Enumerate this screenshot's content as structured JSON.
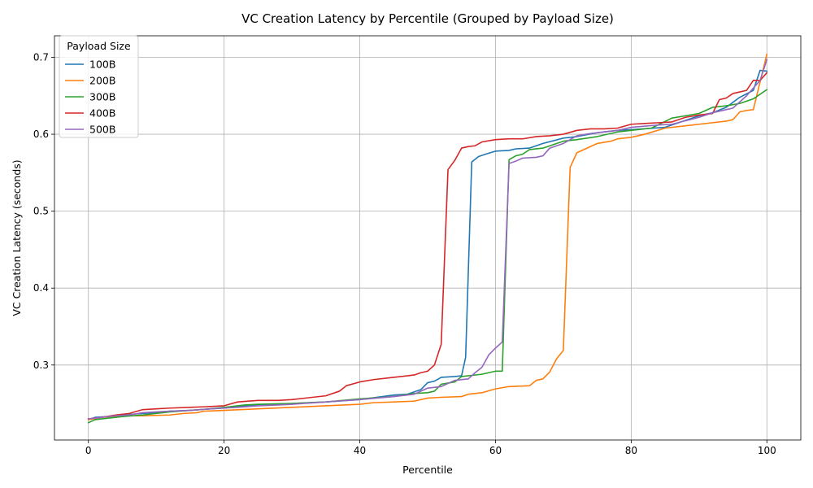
{
  "chart_data": {
    "type": "line",
    "title": "VC Creation Latency by Percentile (Grouped by Payload Size)",
    "xlabel": "Percentile",
    "ylabel": "VC Creation Latency (seconds)",
    "xlim": [
      -5,
      105
    ],
    "ylim": [
      0.2025,
      0.728
    ],
    "xticks": [
      0,
      20,
      40,
      60,
      80,
      100
    ],
    "yticks": [
      0.3,
      0.4,
      0.5,
      0.6,
      0.7
    ],
    "xtick_labels": [
      "0",
      "20",
      "40",
      "60",
      "80",
      "100"
    ],
    "ytick_labels": [
      "0.3",
      "0.4",
      "0.5",
      "0.6",
      "0.7"
    ],
    "grid": true,
    "legend": {
      "title": "Payload Size",
      "placement": "top-left"
    },
    "series": [
      {
        "name": "100B",
        "color": "#1f77b4",
        "points": [
          [
            0,
            0.229
          ],
          [
            1,
            0.232
          ],
          [
            3,
            0.233
          ],
          [
            5,
            0.235
          ],
          [
            8,
            0.237
          ],
          [
            10,
            0.238
          ],
          [
            12,
            0.24
          ],
          [
            15,
            0.241
          ],
          [
            18,
            0.243
          ],
          [
            20,
            0.244
          ],
          [
            22,
            0.246
          ],
          [
            25,
            0.248
          ],
          [
            30,
            0.25
          ],
          [
            35,
            0.252
          ],
          [
            40,
            0.255
          ],
          [
            45,
            0.261
          ],
          [
            47,
            0.262
          ],
          [
            49,
            0.268
          ],
          [
            50,
            0.277
          ],
          [
            51,
            0.279
          ],
          [
            52,
            0.284
          ],
          [
            54,
            0.285
          ],
          [
            55,
            0.286
          ],
          [
            55.6,
            0.31
          ],
          [
            56.5,
            0.564
          ],
          [
            57.5,
            0.571
          ],
          [
            58.5,
            0.574
          ],
          [
            60,
            0.578
          ],
          [
            62,
            0.579
          ],
          [
            63,
            0.581
          ],
          [
            65,
            0.582
          ],
          [
            67,
            0.588
          ],
          [
            70,
            0.595
          ],
          [
            72,
            0.597
          ],
          [
            75,
            0.602
          ],
          [
            78,
            0.605
          ],
          [
            80,
            0.606
          ],
          [
            85,
            0.609
          ],
          [
            88,
            0.618
          ],
          [
            90,
            0.624
          ],
          [
            92,
            0.628
          ],
          [
            94,
            0.635
          ],
          [
            96,
            0.648
          ],
          [
            98,
            0.657
          ],
          [
            99,
            0.683
          ],
          [
            100,
            0.682
          ]
        ]
      },
      {
        "name": "200B",
        "color": "#ff7f0e",
        "points": [
          [
            0,
            0.229
          ],
          [
            2,
            0.232
          ],
          [
            5,
            0.234
          ],
          [
            8,
            0.234
          ],
          [
            12,
            0.235
          ],
          [
            14,
            0.237
          ],
          [
            16,
            0.238
          ],
          [
            17,
            0.24
          ],
          [
            20,
            0.241
          ],
          [
            25,
            0.243
          ],
          [
            30,
            0.245
          ],
          [
            35,
            0.247
          ],
          [
            40,
            0.249
          ],
          [
            42,
            0.251
          ],
          [
            45,
            0.252
          ],
          [
            48,
            0.253
          ],
          [
            50,
            0.257
          ],
          [
            52,
            0.258
          ],
          [
            55,
            0.259
          ],
          [
            56,
            0.262
          ],
          [
            58,
            0.264
          ],
          [
            60,
            0.269
          ],
          [
            62,
            0.272
          ],
          [
            65,
            0.273
          ],
          [
            66,
            0.28
          ],
          [
            67,
            0.282
          ],
          [
            68,
            0.291
          ],
          [
            69,
            0.308
          ],
          [
            70,
            0.319
          ],
          [
            71,
            0.557
          ],
          [
            72,
            0.576
          ],
          [
            73,
            0.58
          ],
          [
            75,
            0.588
          ],
          [
            77,
            0.591
          ],
          [
            78,
            0.594
          ],
          [
            80,
            0.596
          ],
          [
            82,
            0.6
          ],
          [
            85,
            0.608
          ],
          [
            88,
            0.611
          ],
          [
            90,
            0.613
          ],
          [
            92,
            0.615
          ],
          [
            94,
            0.617
          ],
          [
            95,
            0.619
          ],
          [
            96,
            0.629
          ],
          [
            97,
            0.631
          ],
          [
            98,
            0.632
          ],
          [
            99,
            0.668
          ],
          [
            100,
            0.704
          ]
        ]
      },
      {
        "name": "300B",
        "color": "#2ca02c",
        "points": [
          [
            0,
            0.225
          ],
          [
            1,
            0.229
          ],
          [
            3,
            0.231
          ],
          [
            5,
            0.233
          ],
          [
            8,
            0.235
          ],
          [
            10,
            0.237
          ],
          [
            12,
            0.239
          ],
          [
            15,
            0.241
          ],
          [
            18,
            0.243
          ],
          [
            21,
            0.246
          ],
          [
            23,
            0.248
          ],
          [
            25,
            0.249
          ],
          [
            30,
            0.25
          ],
          [
            35,
            0.252
          ],
          [
            40,
            0.256
          ],
          [
            45,
            0.259
          ],
          [
            48,
            0.263
          ],
          [
            50,
            0.264
          ],
          [
            51,
            0.266
          ],
          [
            52,
            0.275
          ],
          [
            54,
            0.278
          ],
          [
            55,
            0.285
          ],
          [
            58,
            0.288
          ],
          [
            60,
            0.292
          ],
          [
            61,
            0.292
          ],
          [
            62,
            0.567
          ],
          [
            63,
            0.572
          ],
          [
            64,
            0.574
          ],
          [
            65,
            0.58
          ],
          [
            67,
            0.582
          ],
          [
            70,
            0.591
          ],
          [
            72,
            0.593
          ],
          [
            75,
            0.597
          ],
          [
            78,
            0.603
          ],
          [
            80,
            0.605
          ],
          [
            83,
            0.608
          ],
          [
            86,
            0.621
          ],
          [
            88,
            0.624
          ],
          [
            90,
            0.627
          ],
          [
            92,
            0.635
          ],
          [
            94,
            0.637
          ],
          [
            96,
            0.64
          ],
          [
            98,
            0.646
          ],
          [
            100,
            0.658
          ]
        ]
      },
      {
        "name": "400B",
        "color": "#d62728",
        "points": [
          [
            0,
            0.23
          ],
          [
            2,
            0.232
          ],
          [
            4,
            0.235
          ],
          [
            6,
            0.237
          ],
          [
            8,
            0.242
          ],
          [
            10,
            0.243
          ],
          [
            12,
            0.244
          ],
          [
            15,
            0.245
          ],
          [
            18,
            0.246
          ],
          [
            20,
            0.247
          ],
          [
            22,
            0.252
          ],
          [
            25,
            0.254
          ],
          [
            28,
            0.254
          ],
          [
            30,
            0.255
          ],
          [
            33,
            0.258
          ],
          [
            35,
            0.26
          ],
          [
            37,
            0.266
          ],
          [
            38,
            0.273
          ],
          [
            40,
            0.278
          ],
          [
            42,
            0.281
          ],
          [
            45,
            0.284
          ],
          [
            47,
            0.286
          ],
          [
            48,
            0.287
          ],
          [
            49,
            0.29
          ],
          [
            50,
            0.292
          ],
          [
            51,
            0.3
          ],
          [
            52,
            0.327
          ],
          [
            53,
            0.554
          ],
          [
            54,
            0.566
          ],
          [
            55,
            0.582
          ],
          [
            56,
            0.584
          ],
          [
            57,
            0.585
          ],
          [
            58,
            0.59
          ],
          [
            60,
            0.593
          ],
          [
            62,
            0.594
          ],
          [
            64,
            0.594
          ],
          [
            66,
            0.597
          ],
          [
            68,
            0.598
          ],
          [
            70,
            0.6
          ],
          [
            72,
            0.605
          ],
          [
            74,
            0.607
          ],
          [
            76,
            0.607
          ],
          [
            78,
            0.608
          ],
          [
            80,
            0.613
          ],
          [
            82,
            0.614
          ],
          [
            84,
            0.615
          ],
          [
            86,
            0.616
          ],
          [
            88,
            0.622
          ],
          [
            90,
            0.625
          ],
          [
            92,
            0.627
          ],
          [
            93,
            0.645
          ],
          [
            94,
            0.647
          ],
          [
            95,
            0.653
          ],
          [
            96,
            0.655
          ],
          [
            97,
            0.657
          ],
          [
            98,
            0.67
          ],
          [
            99,
            0.67
          ],
          [
            100,
            0.68
          ]
        ]
      },
      {
        "name": "500B",
        "color": "#9467bd",
        "points": [
          [
            0,
            0.23
          ],
          [
            2,
            0.232
          ],
          [
            4,
            0.234
          ],
          [
            6,
            0.235
          ],
          [
            8,
            0.238
          ],
          [
            10,
            0.239
          ],
          [
            12,
            0.24
          ],
          [
            15,
            0.241
          ],
          [
            18,
            0.243
          ],
          [
            20,
            0.244
          ],
          [
            22,
            0.245
          ],
          [
            25,
            0.247
          ],
          [
            28,
            0.248
          ],
          [
            30,
            0.249
          ],
          [
            35,
            0.252
          ],
          [
            40,
            0.255
          ],
          [
            45,
            0.259
          ],
          [
            48,
            0.262
          ],
          [
            50,
            0.27
          ],
          [
            52,
            0.272
          ],
          [
            54,
            0.28
          ],
          [
            56,
            0.282
          ],
          [
            57,
            0.29
          ],
          [
            58,
            0.297
          ],
          [
            59,
            0.313
          ],
          [
            60,
            0.322
          ],
          [
            61,
            0.33
          ],
          [
            62,
            0.562
          ],
          [
            63,
            0.565
          ],
          [
            64,
            0.569
          ],
          [
            66,
            0.57
          ],
          [
            67,
            0.572
          ],
          [
            68,
            0.582
          ],
          [
            70,
            0.588
          ],
          [
            72,
            0.598
          ],
          [
            74,
            0.601
          ],
          [
            76,
            0.603
          ],
          [
            78,
            0.605
          ],
          [
            80,
            0.609
          ],
          [
            84,
            0.612
          ],
          [
            86,
            0.613
          ],
          [
            90,
            0.622
          ],
          [
            92,
            0.628
          ],
          [
            95,
            0.634
          ],
          [
            97,
            0.65
          ],
          [
            99,
            0.67
          ],
          [
            100,
            0.697
          ]
        ]
      }
    ]
  }
}
